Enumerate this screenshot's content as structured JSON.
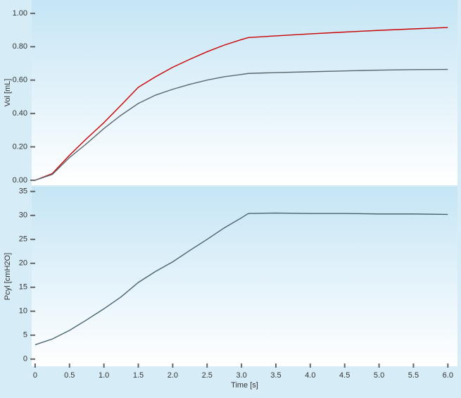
{
  "chart_data": [
    {
      "type": "line",
      "y_label": "Vol [mL]",
      "xlim": [
        -0.05,
        6.14
      ],
      "ylim": [
        -0.03,
        1.08
      ],
      "yticks": [
        {
          "value": 0,
          "label": "0.00"
        },
        {
          "value": 0.2,
          "label": "0.20"
        },
        {
          "value": 0.4,
          "label": "0.40"
        },
        {
          "value": 0.6,
          "label": "0.60"
        },
        {
          "value": 0.8,
          "label": "0.80"
        },
        {
          "value": 1,
          "label": "1.00"
        }
      ],
      "x": [
        0,
        0.25,
        0.5,
        0.75,
        1.0,
        1.25,
        1.5,
        1.75,
        2.0,
        2.25,
        2.5,
        2.75,
        3.0,
        3.1,
        3.5,
        4.0,
        4.5,
        5.0,
        5.5,
        6.0
      ],
      "series": [
        {
          "color": "#cc0000",
          "values": [
            0,
            0.04,
            0.15,
            0.25,
            0.345,
            0.45,
            0.557,
            0.62,
            0.677,
            0.725,
            0.77,
            0.81,
            0.843,
            0.855,
            0.865,
            0.877,
            0.888,
            0.898,
            0.907,
            0.915
          ]
        },
        {
          "color": "#5a6870",
          "values": [
            0,
            0.035,
            0.136,
            0.22,
            0.31,
            0.39,
            0.46,
            0.51,
            0.545,
            0.575,
            0.6,
            0.62,
            0.634,
            0.64,
            0.645,
            0.65,
            0.655,
            0.66,
            0.663,
            0.664
          ]
        }
      ]
    },
    {
      "type": "line",
      "y_label": "Pcyl [cmH2O]",
      "x_label": "Time [s]",
      "xlim": [
        -0.05,
        6.14
      ],
      "ylim": [
        -1.5,
        36
      ],
      "yticks": [
        0,
        5,
        10,
        15,
        20,
        25,
        30,
        35
      ],
      "xticks": [
        0,
        0.5,
        {
          "value": 1,
          "label": "1.0"
        },
        1.5,
        {
          "value": 2,
          "label": "2.0"
        },
        2.5,
        {
          "value": 3,
          "label": "3.0"
        },
        3.5,
        {
          "value": 4,
          "label": "4.0"
        },
        4.5,
        {
          "value": 5,
          "label": "5.0"
        },
        5.5,
        {
          "value": 6,
          "label": "6.0"
        }
      ],
      "x": [
        0,
        0.25,
        0.5,
        0.75,
        1.0,
        1.25,
        1.5,
        1.75,
        2.0,
        2.25,
        2.5,
        2.75,
        3.0,
        3.1,
        3.5,
        4.0,
        4.5,
        5.0,
        5.5,
        6.0
      ],
      "series": [
        {
          "color": "#4a6470",
          "values": [
            3,
            4.2,
            6,
            8.2,
            10.5,
            13,
            16,
            18.3,
            20.3,
            22.7,
            25,
            27.4,
            29.5,
            30.4,
            30.5,
            30.4,
            30.4,
            30.3,
            30.3,
            30.2
          ]
        }
      ]
    }
  ]
}
